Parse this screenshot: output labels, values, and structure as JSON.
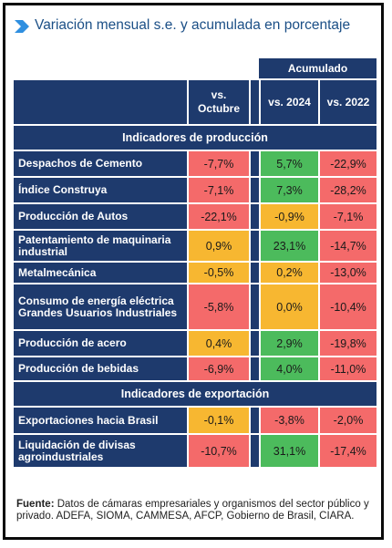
{
  "title": "Variación mensual s.e. y acumulada en porcentaje",
  "header": {
    "group_label": "Acumulado",
    "columns": [
      "vs. Octubre",
      "vs. 2024",
      "vs. 2022"
    ]
  },
  "sections": [
    {
      "title": "Indicadores de producción",
      "rows": [
        {
          "label": "Despachos de Cemento",
          "vs_octubre": "-7,7%",
          "vs_2024": "5,7%",
          "vs_2022": "-22,9%",
          "colors": [
            "red",
            "green",
            "red"
          ]
        },
        {
          "label": "Índice Construya",
          "vs_octubre": "-7,1%",
          "vs_2024": "7,3%",
          "vs_2022": "-28,2%",
          "colors": [
            "red",
            "green",
            "red"
          ]
        },
        {
          "label": "Producción de Autos",
          "vs_octubre": "-22,1%",
          "vs_2024": "-0,9%",
          "vs_2022": "-7,1%",
          "colors": [
            "red",
            "yellow",
            "red"
          ]
        },
        {
          "label": "Patentamiento de maquinaria industrial",
          "vs_octubre": "0,9%",
          "vs_2024": "23,1%",
          "vs_2022": "-14,7%",
          "colors": [
            "yellow",
            "green",
            "red"
          ]
        },
        {
          "label": "Metalmecánica",
          "vs_octubre": "-0,5%",
          "vs_2024": "0,2%",
          "vs_2022": "-13,0%",
          "colors": [
            "yellow",
            "yellow",
            "red"
          ]
        },
        {
          "label": "Consumo de energía eléctrica Grandes Usuarios Industriales",
          "vs_octubre": "-5,8%",
          "vs_2024": "0,0%",
          "vs_2022": "-10,4%",
          "colors": [
            "red",
            "yellow",
            "red"
          ]
        },
        {
          "label": "Producción de acero",
          "vs_octubre": "0,4%",
          "vs_2024": "2,9%",
          "vs_2022": "-19,8%",
          "colors": [
            "yellow",
            "green",
            "red"
          ]
        },
        {
          "label": "Producción de bebidas",
          "vs_octubre": "-6,9%",
          "vs_2024": "4,0%",
          "vs_2022": "-11,0%",
          "colors": [
            "red",
            "green",
            "red"
          ]
        }
      ]
    },
    {
      "title": "Indicadores de exportación",
      "rows": [
        {
          "label": "Exportaciones hacia Brasil",
          "vs_octubre": "-0,1%",
          "vs_2024": "-3,8%",
          "vs_2022": "-2,0%",
          "colors": [
            "yellow",
            "red",
            "red"
          ]
        },
        {
          "label": "Liquidación de divisas agroindustriales",
          "vs_octubre": "-10,7%",
          "vs_2024": "31,1%",
          "vs_2022": "-17,4%",
          "colors": [
            "red",
            "green",
            "red"
          ]
        }
      ]
    }
  ],
  "footer": {
    "source_label": "Fuente:",
    "source_text": "Datos de cámaras empresariales y organismos del sector público y privado. ADEFA, SIOMA, CAMMESA, AFCP, Gobierno de Brasil, CIARA."
  },
  "colors": {
    "navy": "#1e3a6d",
    "red": "#f46a6a",
    "green": "#4cbb5c",
    "yellow": "#f7b731",
    "title_blue": "#1b4f86"
  }
}
